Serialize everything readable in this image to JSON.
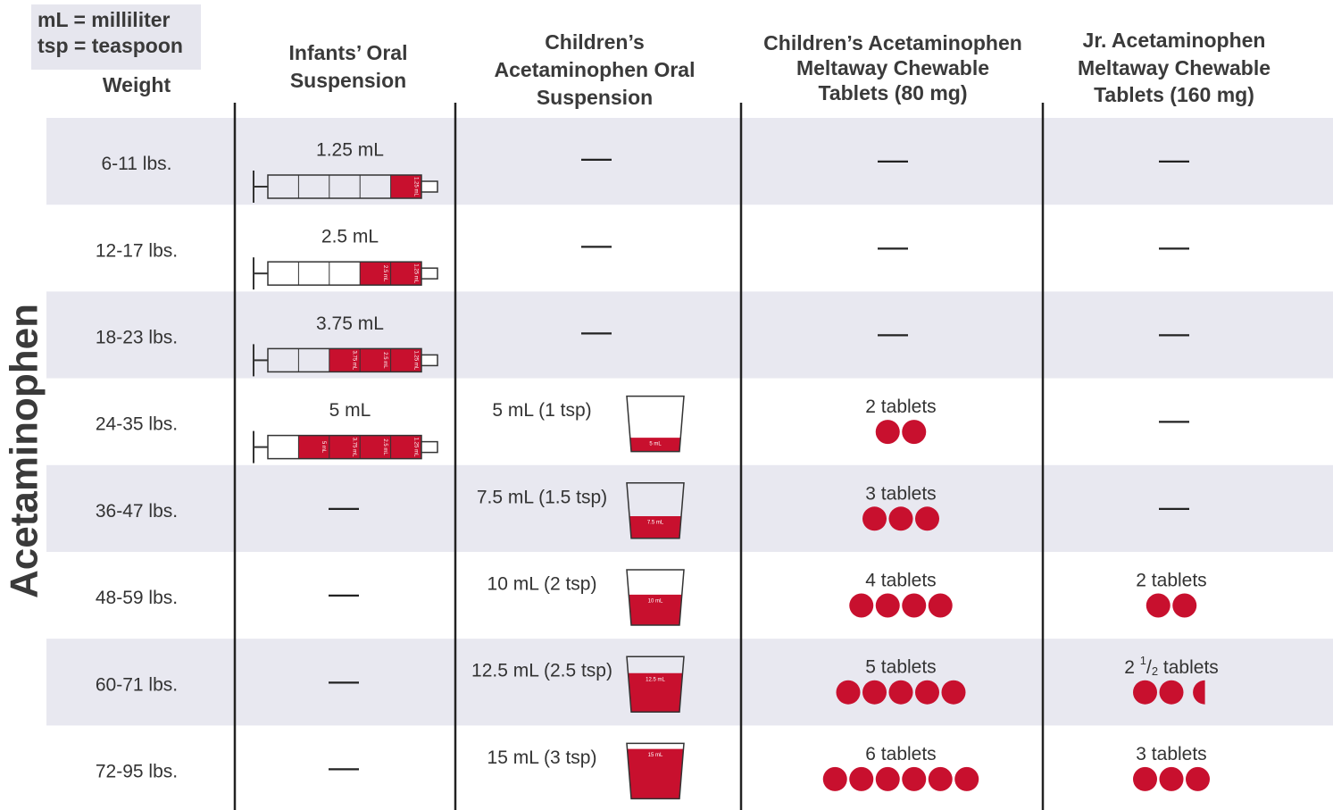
{
  "legend": [
    "mL = milliliter",
    "tsp = teaspoon"
  ],
  "side_label": "Acetaminophen",
  "headers": [
    [
      "Weight"
    ],
    [
      "Infants’ Oral",
      "Suspension"
    ],
    [
      "Children’s",
      "Acetaminophen Oral",
      "Suspension"
    ],
    [
      "Children’s Acetaminophen",
      "Meltaway Chewable",
      "Tablets (80 mg)"
    ],
    [
      "Jr. Acetaminophen",
      "Meltaway Chewable",
      "Tablets (160 mg)"
    ]
  ],
  "rows": [
    {
      "weight": "6-11 lbs.",
      "infant": {
        "dose": "1.25 mL",
        "marks": [
          "1.25 mL"
        ]
      },
      "children": "—",
      "tab80": "—",
      "tab160": "—"
    },
    {
      "weight": "12-17 lbs.",
      "infant": {
        "dose": "2.5 mL",
        "marks": [
          "2.5 mL",
          "1.25 mL"
        ]
      },
      "children": "—",
      "tab80": "—",
      "tab160": "—"
    },
    {
      "weight": "18-23 lbs.",
      "infant": {
        "dose": "3.75 mL",
        "marks": [
          "3.75 mL",
          "2.5 mL",
          "1.25 mL"
        ]
      },
      "children": "—",
      "tab80": "—",
      "tab160": "—"
    },
    {
      "weight": "24-35 lbs.",
      "infant": {
        "dose": "5 mL",
        "marks": [
          "5 mL",
          "3.75 mL",
          "2.5 mL",
          "1.25 mL"
        ]
      },
      "children": {
        "dose": "5 mL (1 tsp)",
        "cup": "5 mL"
      },
      "tab80": {
        "label": "2 tablets",
        "count": 2
      },
      "tab160": "—"
    },
    {
      "weight": "36-47 lbs.",
      "infant": "—",
      "children": {
        "dose": "7.5 mL (1.5 tsp)",
        "cup": "7.5 mL"
      },
      "tab80": {
        "label": "3 tablets",
        "count": 3
      },
      "tab160": "—"
    },
    {
      "weight": "48-59 lbs.",
      "infant": "—",
      "children": {
        "dose": "10 mL (2 tsp)",
        "cup": "10 mL"
      },
      "tab80": {
        "label": "4 tablets",
        "count": 4
      },
      "tab160": {
        "label": "2 tablets",
        "count": 2
      }
    },
    {
      "weight": "60-71 lbs.",
      "infant": "—",
      "children": {
        "dose": "12.5 mL (2.5 tsp)",
        "cup": "12.5 mL"
      },
      "tab80": {
        "label": "5 tablets",
        "count": 5
      },
      "tab160": {
        "label": {
          "whole": "2",
          "num": "1",
          "slash": "/",
          "den": "2",
          "unit": "tablets"
        },
        "count": 2.5
      }
    },
    {
      "weight": "72-95 lbs.",
      "infant": "—",
      "children": {
        "dose": "15 mL (3 tsp)",
        "cup": "15 mL"
      },
      "tab80": {
        "label": "6 tablets",
        "count": 6
      },
      "tab160": {
        "label": "3 tablets",
        "count": 3
      }
    }
  ]
}
